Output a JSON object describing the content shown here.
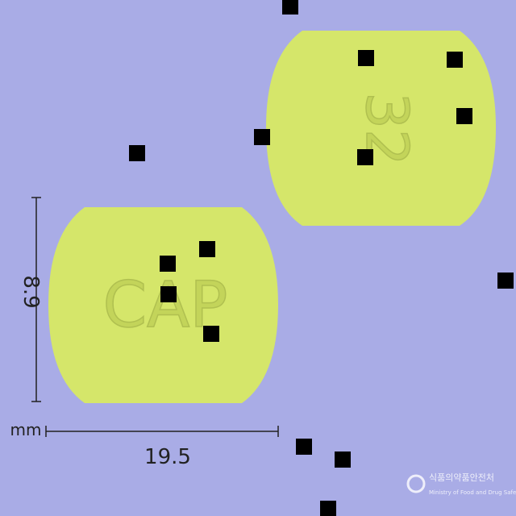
{
  "dimensions": {
    "height": "8.9",
    "width": "19.5",
    "unit": "mm"
  },
  "imprints": [
    "CAP",
    "32"
  ],
  "watermark": {
    "org_korean": "식품의약품안전처",
    "org_english": "Ministry of Food and Drug Safety"
  }
}
